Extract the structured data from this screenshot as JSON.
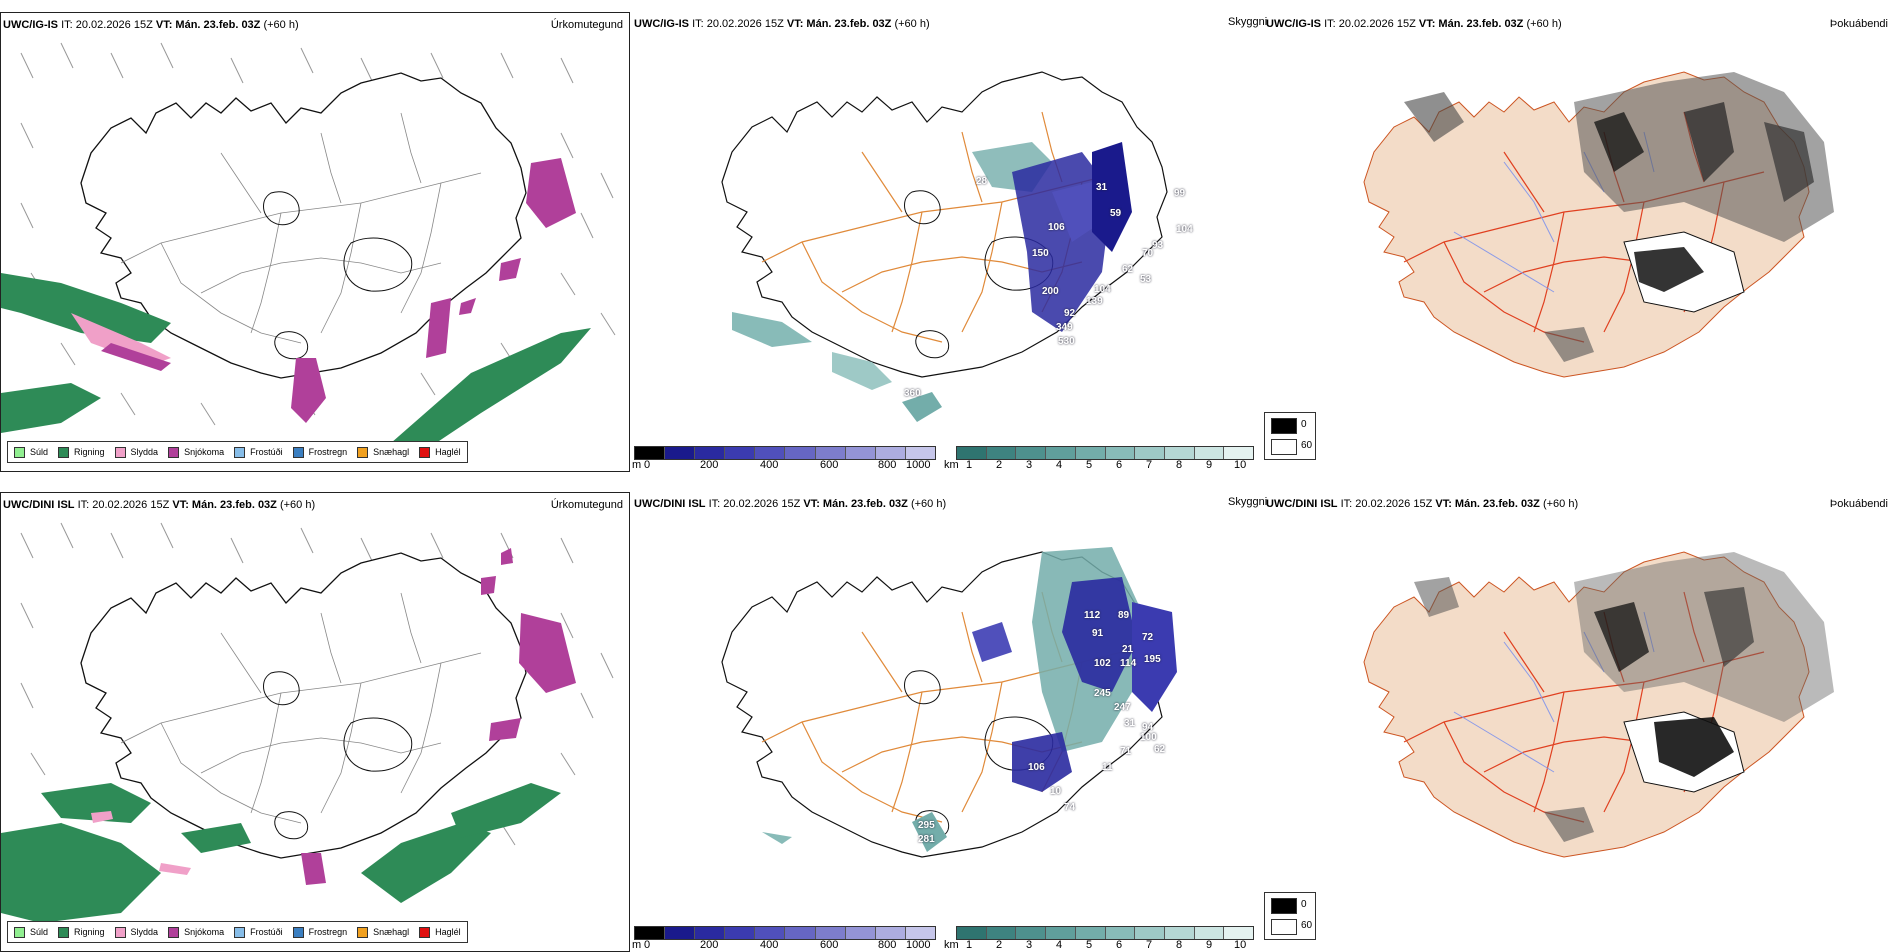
{
  "panels": {
    "top": {
      "model_a": "UWC/IG-IS",
      "it": "IT: 20.02.2026 15Z",
      "vt_label": "VT:",
      "vt_value": "Mán. 23.feb. 03Z",
      "lead": "(+60 h)"
    },
    "bottom": {
      "model_a": "UWC/DINI ISL",
      "it": "IT: 20.02.2026 15Z",
      "vt_label": "VT:",
      "vt_value": "Mán. 23.feb. 03Z",
      "lead": "(+60 h)"
    }
  },
  "headings": {
    "precip": "Úrkomutegund",
    "visibility": "Skyggni",
    "fog": "Þokuábendi"
  },
  "precip_legend": [
    {
      "label": "Súld",
      "color": "#90ee90"
    },
    {
      "label": "Rigning",
      "color": "#2e8b57"
    },
    {
      "label": "Slydda",
      "color": "#f0a0c8"
    },
    {
      "label": "Snjókoma",
      "color": "#b0409a"
    },
    {
      "label": "Frostúði",
      "color": "#87bde8"
    },
    {
      "label": "Frostregn",
      "color": "#3a7ec0"
    },
    {
      "label": "Snæhagl",
      "color": "#f0a020"
    },
    {
      "label": "Haglél",
      "color": "#e01010"
    }
  ],
  "ceiling_bar": {
    "unit": "m",
    "ticks": [
      "0",
      "200",
      "400",
      "600",
      "800",
      "1000"
    ],
    "colors": [
      "#000000",
      "#1a1a8c",
      "#2a2aa0",
      "#3b3bb0",
      "#5050bb",
      "#6666c4",
      "#7d7dcc",
      "#9494d6",
      "#adade0",
      "#c6c6ea"
    ]
  },
  "vis_bar": {
    "unit": "km",
    "ticks": [
      "1",
      "2",
      "3",
      "4",
      "5",
      "6",
      "7",
      "8",
      "9",
      "10"
    ],
    "colors": [
      "#2f7470",
      "#3e8380",
      "#4e918e",
      "#609f9c",
      "#73adaa",
      "#88bbb8",
      "#9ec9c6",
      "#b5d7d4",
      "#cce5e2",
      "#e4f2f0"
    ]
  },
  "fog_legend": {
    "items": [
      {
        "label": "0",
        "color": "#000000"
      },
      {
        "label": "60",
        "color": "#ffffff"
      }
    ]
  },
  "ceiling_labels_top": [
    "28",
    "31",
    "99",
    "104",
    "106",
    "59",
    "62",
    "70",
    "93",
    "53",
    "150",
    "200",
    "104",
    "139",
    "92",
    "349",
    "530",
    "360"
  ],
  "ceiling_labels_bottom": [
    "112",
    "89",
    "91",
    "72",
    "21",
    "102",
    "114",
    "195",
    "245",
    "247",
    "94",
    "31",
    "62",
    "71",
    "100",
    "106",
    "11",
    "10",
    "74",
    "295",
    "281"
  ]
}
